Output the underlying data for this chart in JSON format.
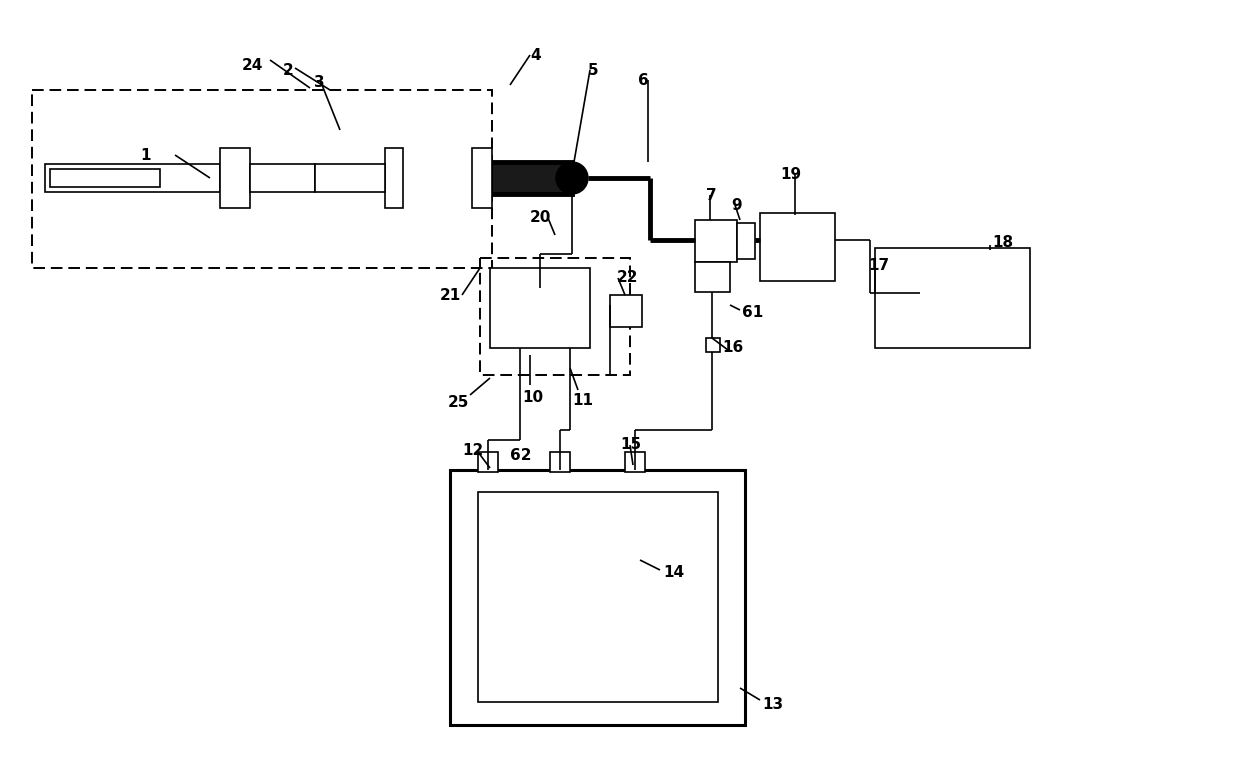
{
  "bg_color": "#ffffff",
  "line_color": "#000000",
  "lw": 1.2,
  "lw_thick": 3.5,
  "lw_dash": 1.4,
  "fs": 11,
  "fig_width": 12.4,
  "fig_height": 7.59,
  "dpi": 100
}
